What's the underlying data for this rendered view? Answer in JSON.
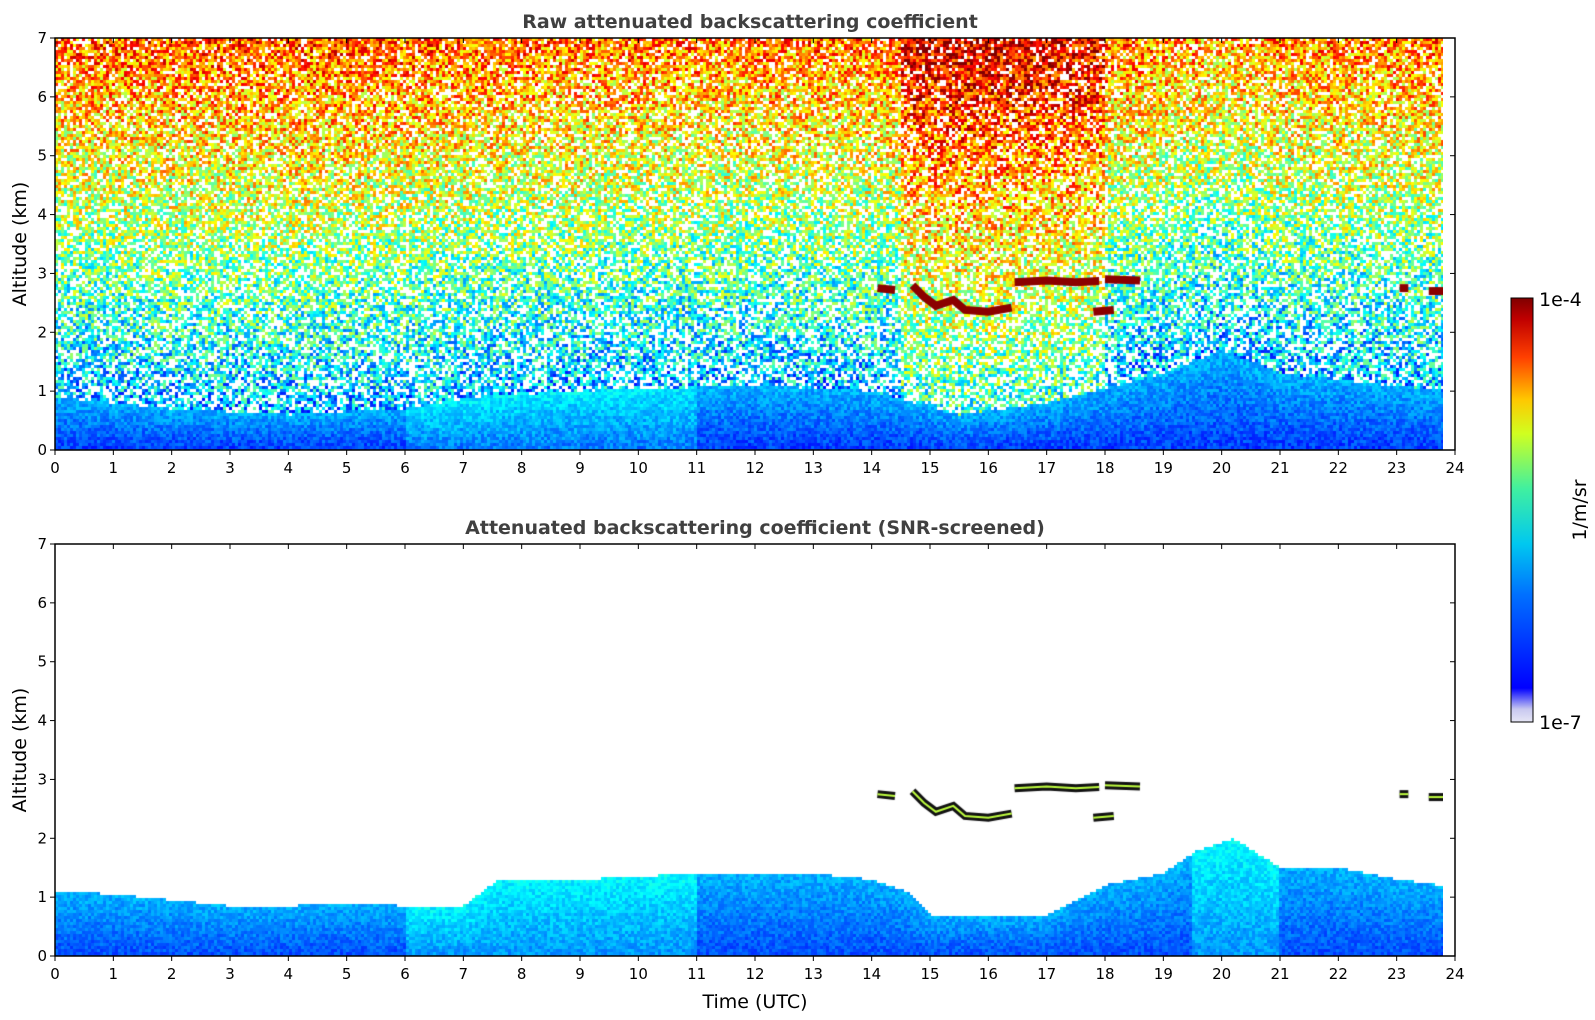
{
  "chart_data": [
    {
      "type": "heatmap",
      "title": "Raw attenuated backscattering coefficient",
      "xlabel": "",
      "ylabel": "Altitude (km)",
      "xlim": [
        0,
        24
      ],
      "ylim": [
        0,
        7
      ],
      "xticks": [
        "0",
        "1",
        "2",
        "3",
        "4",
        "5",
        "6",
        "7",
        "8",
        "9",
        "10",
        "11",
        "12",
        "13",
        "14",
        "15",
        "16",
        "17",
        "18",
        "19",
        "20",
        "21",
        "22",
        "23",
        "24"
      ],
      "yticks": [
        "0",
        "1",
        "2",
        "3",
        "4",
        "5",
        "6",
        "7"
      ],
      "data_end_time": 23.8,
      "features": {
        "boundary_layer_top_km": [
          {
            "t": 0,
            "z": 0.9
          },
          {
            "t": 2,
            "z": 0.7
          },
          {
            "t": 4,
            "z": 0.6
          },
          {
            "t": 6,
            "z": 0.7
          },
          {
            "t": 7.2,
            "z": 0.9
          },
          {
            "t": 9,
            "z": 1.0
          },
          {
            "t": 12,
            "z": 1.1
          },
          {
            "t": 14,
            "z": 1.0
          },
          {
            "t": 15.5,
            "z": 0.6
          },
          {
            "t": 17,
            "z": 0.8
          },
          {
            "t": 19,
            "z": 1.3
          },
          {
            "t": 20,
            "z": 1.7
          },
          {
            "t": 21,
            "z": 1.3
          },
          {
            "t": 23.8,
            "z": 1.0
          }
        ],
        "cloud_layers_km": [
          [
            {
              "t": 14.1,
              "z": 2.75
            },
            {
              "t": 14.4,
              "z": 2.72
            }
          ],
          [
            {
              "t": 14.7,
              "z": 2.8
            },
            {
              "t": 14.9,
              "z": 2.6
            },
            {
              "t": 15.1,
              "z": 2.45
            },
            {
              "t": 15.4,
              "z": 2.55
            },
            {
              "t": 15.6,
              "z": 2.38
            },
            {
              "t": 16.0,
              "z": 2.35
            },
            {
              "t": 16.4,
              "z": 2.42
            }
          ],
          [
            {
              "t": 16.45,
              "z": 2.85
            },
            {
              "t": 17.0,
              "z": 2.88
            },
            {
              "t": 17.5,
              "z": 2.85
            },
            {
              "t": 17.9,
              "z": 2.87
            }
          ],
          [
            {
              "t": 18.0,
              "z": 2.9
            },
            {
              "t": 18.6,
              "z": 2.88
            }
          ],
          [
            {
              "t": 17.8,
              "z": 2.35
            },
            {
              "t": 18.15,
              "z": 2.38
            }
          ],
          [
            {
              "t": 23.05,
              "z": 2.75
            },
            {
              "t": 23.2,
              "z": 2.75
            }
          ],
          [
            {
              "t": 23.55,
              "z": 2.7
            },
            {
              "t": 23.8,
              "z": 2.7
            }
          ]
        ]
      }
    },
    {
      "type": "heatmap",
      "title": "Attenuated backscattering coefficient (SNR-screened)",
      "xlabel": "Time (UTC)",
      "ylabel": "Altitude (km)",
      "xlim": [
        0,
        24
      ],
      "ylim": [
        0,
        7
      ],
      "xticks": [
        "0",
        "1",
        "2",
        "3",
        "4",
        "5",
        "6",
        "7",
        "8",
        "9",
        "10",
        "11",
        "12",
        "13",
        "14",
        "15",
        "16",
        "17",
        "18",
        "19",
        "20",
        "21",
        "22",
        "23",
        "24"
      ],
      "yticks": [
        "0",
        "1",
        "2",
        "3",
        "4",
        "5",
        "6",
        "7"
      ],
      "data_end_time": 23.8,
      "features": {
        "screened_layer_top_km": [
          {
            "t": 0,
            "z": 1.1
          },
          {
            "t": 1,
            "z": 1.05
          },
          {
            "t": 2,
            "z": 0.95
          },
          {
            "t": 3,
            "z": 0.85
          },
          {
            "t": 4,
            "z": 0.85
          },
          {
            "t": 5,
            "z": 0.9
          },
          {
            "t": 6,
            "z": 0.85
          },
          {
            "t": 7,
            "z": 0.85
          },
          {
            "t": 7.6,
            "z": 1.3
          },
          {
            "t": 9,
            "z": 1.3
          },
          {
            "t": 11,
            "z": 1.4
          },
          {
            "t": 13,
            "z": 1.4
          },
          {
            "t": 14,
            "z": 1.3
          },
          {
            "t": 14.6,
            "z": 1.1
          },
          {
            "t": 15,
            "z": 0.7
          },
          {
            "t": 16,
            "z": 0.7
          },
          {
            "t": 17,
            "z": 0.7
          },
          {
            "t": 18,
            "z": 1.2
          },
          {
            "t": 19,
            "z": 1.4
          },
          {
            "t": 19.6,
            "z": 1.8
          },
          {
            "t": 20.2,
            "z": 2.0
          },
          {
            "t": 21,
            "z": 1.5
          },
          {
            "t": 22,
            "z": 1.5
          },
          {
            "t": 23,
            "z": 1.3
          },
          {
            "t": 23.8,
            "z": 1.2
          }
        ],
        "cloud_layers_km": [
          [
            {
              "t": 14.1,
              "z": 2.75
            },
            {
              "t": 14.4,
              "z": 2.72
            }
          ],
          [
            {
              "t": 14.7,
              "z": 2.8
            },
            {
              "t": 14.9,
              "z": 2.6
            },
            {
              "t": 15.1,
              "z": 2.45
            },
            {
              "t": 15.4,
              "z": 2.55
            },
            {
              "t": 15.6,
              "z": 2.38
            },
            {
              "t": 16.0,
              "z": 2.35
            },
            {
              "t": 16.4,
              "z": 2.42
            }
          ],
          [
            {
              "t": 16.45,
              "z": 2.85
            },
            {
              "t": 17.0,
              "z": 2.88
            },
            {
              "t": 17.5,
              "z": 2.85
            },
            {
              "t": 17.9,
              "z": 2.87
            }
          ],
          [
            {
              "t": 18.0,
              "z": 2.9
            },
            {
              "t": 18.6,
              "z": 2.88
            }
          ],
          [
            {
              "t": 17.8,
              "z": 2.35
            },
            {
              "t": 18.15,
              "z": 2.38
            }
          ],
          [
            {
              "t": 23.05,
              "z": 2.75
            },
            {
              "t": 23.2,
              "z": 2.75
            }
          ],
          [
            {
              "t": 23.55,
              "z": 2.7
            },
            {
              "t": 23.8,
              "z": 2.7
            }
          ]
        ]
      }
    }
  ],
  "colorbar": {
    "label": "1/m/sr",
    "min_label": "1e-7",
    "max_label": "1e-4",
    "colormap": "jet",
    "colors": [
      "#e6e6f5",
      "#0000ff",
      "#0080ff",
      "#00e0e0",
      "#80ff80",
      "#ffff00",
      "#ff8000",
      "#ff0000",
      "#800000"
    ]
  }
}
